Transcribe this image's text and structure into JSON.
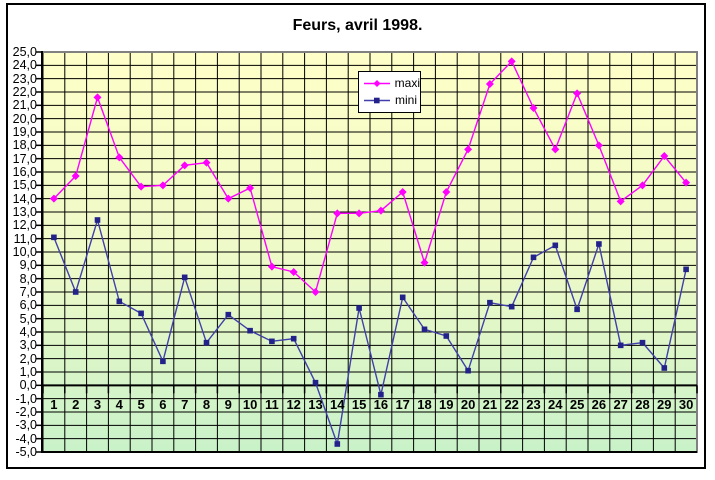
{
  "chart_data": {
    "type": "line",
    "title": "Feurs, avril 1998.",
    "categories": [
      1,
      2,
      3,
      4,
      5,
      6,
      7,
      8,
      9,
      10,
      11,
      12,
      13,
      14,
      15,
      16,
      17,
      18,
      19,
      20,
      21,
      22,
      23,
      24,
      25,
      26,
      27,
      28,
      29,
      30
    ],
    "x_tick_labels": [
      "1",
      "2",
      "3",
      "4",
      "5",
      "6",
      "7",
      "8",
      "9",
      "10",
      "11",
      "12",
      "13",
      "14",
      "15",
      "16",
      "17",
      "18",
      "19",
      "20",
      "21",
      "22",
      "23",
      "24",
      "25",
      "26",
      "27",
      "28",
      "29",
      "30"
    ],
    "y_tick_labels": [
      "25,0",
      "24,0",
      "23,0",
      "22,0",
      "21,0",
      "20,0",
      "19,0",
      "18,0",
      "17,0",
      "16,0",
      "15,0",
      "14,0",
      "13,0",
      "12,0",
      "11,0",
      "10,0",
      "9,0",
      "8,0",
      "7,0",
      "6,0",
      "5,0",
      "4,0",
      "3,0",
      "2,0",
      "1,0",
      "0,0",
      "-1,0",
      "-2,0",
      "-3,0",
      "-4,0",
      "-5,0"
    ],
    "ylim": [
      -5,
      25
    ],
    "y_tick_step": 1,
    "grid": true,
    "legend_position": "top-center-inside",
    "plot_background": {
      "top_color": "#FFFFC8",
      "bottom_color": "#C9F2C9"
    },
    "axis_color": "#000000",
    "plot_border_color": "#808080",
    "series": [
      {
        "name": "maxi",
        "color": "#FF00FF",
        "marker": "diamond",
        "marker_color": "#FF00FF",
        "values": [
          14.0,
          15.7,
          21.6,
          17.1,
          14.9,
          15.0,
          16.5,
          16.7,
          14.0,
          14.8,
          8.9,
          8.5,
          7.0,
          12.9,
          12.9,
          13.1,
          14.5,
          9.2,
          14.5,
          17.7,
          22.6,
          24.3,
          20.8,
          17.7,
          21.9,
          18.0,
          13.8,
          15.0,
          17.2,
          15.2
        ]
      },
      {
        "name": "mini",
        "color": "#4040A8",
        "marker": "square",
        "marker_color": "#22228A",
        "values": [
          11.1,
          7.0,
          12.4,
          6.3,
          5.4,
          1.8,
          8.1,
          3.2,
          5.3,
          4.1,
          3.3,
          3.5,
          0.2,
          -4.4,
          5.8,
          -0.7,
          6.6,
          4.2,
          3.7,
          1.1,
          6.2,
          5.9,
          9.6,
          10.5,
          5.7,
          10.6,
          3.0,
          3.2,
          1.3,
          8.7
        ]
      }
    ]
  },
  "legend": {
    "items": [
      {
        "label": "maxi"
      },
      {
        "label": "mini"
      }
    ]
  }
}
